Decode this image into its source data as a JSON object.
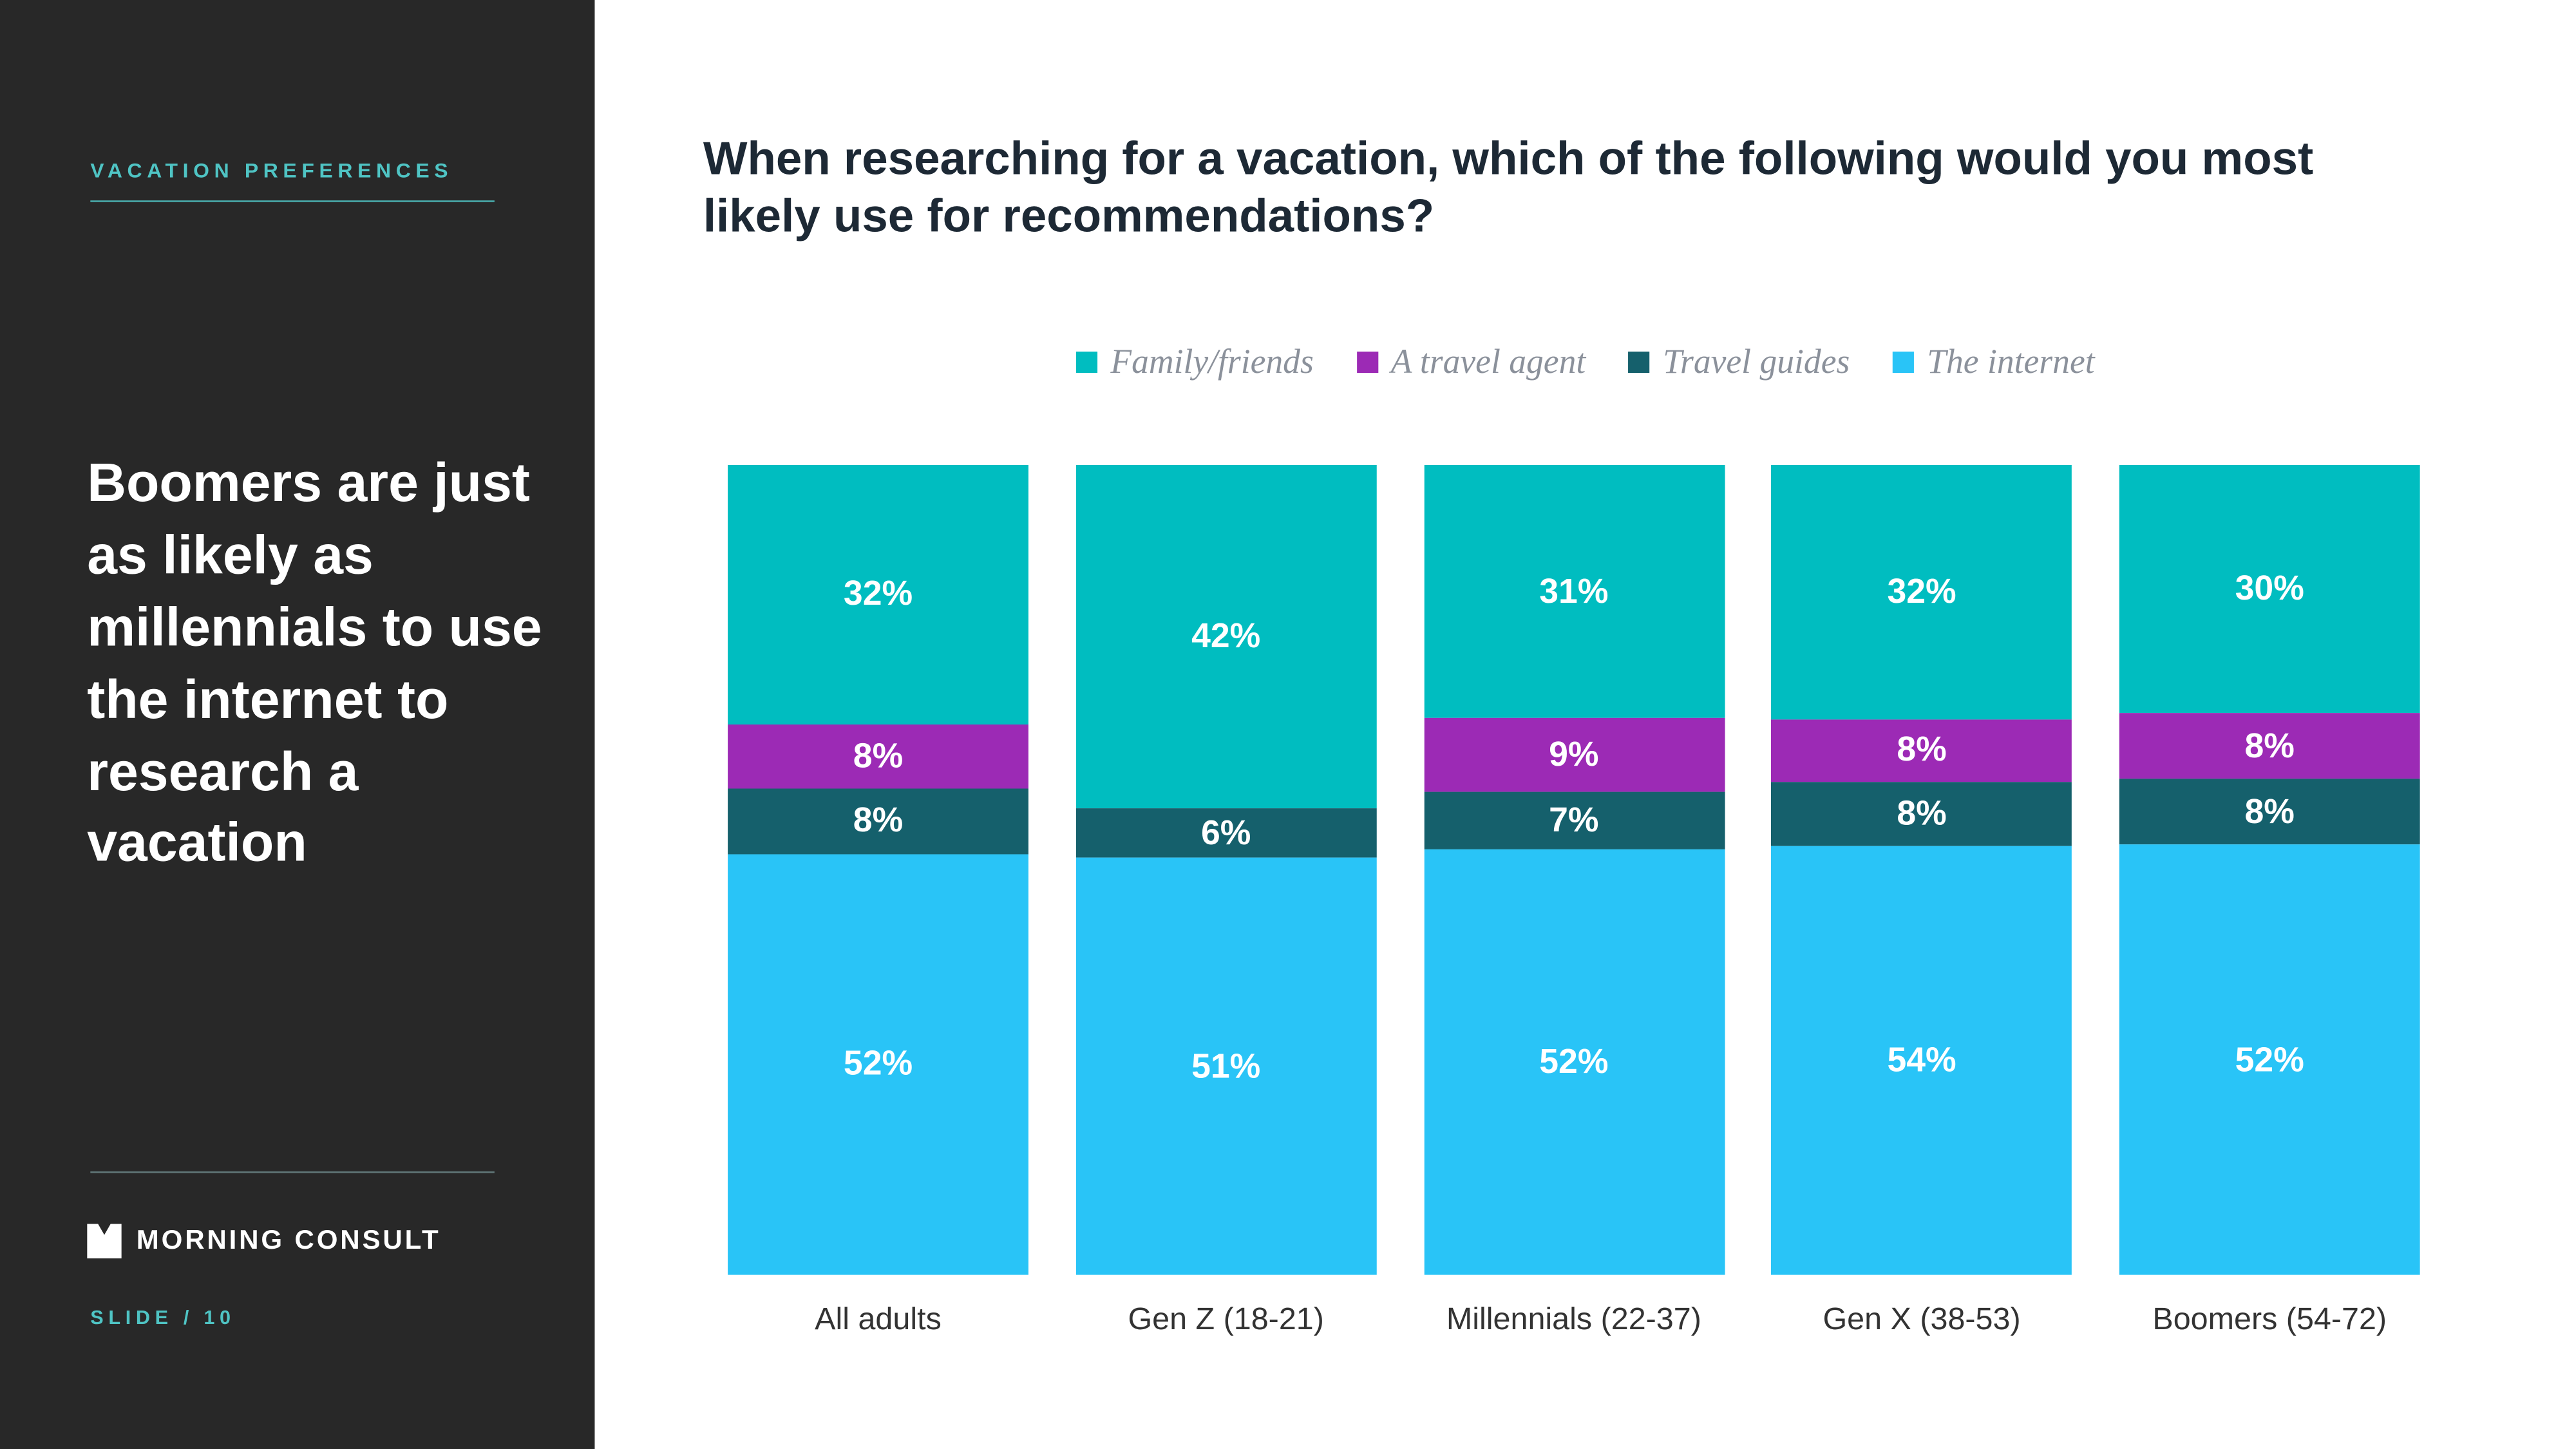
{
  "sidebar": {
    "eyebrow": "VACATION PREFERENCES",
    "headline": "Boomers are just as likely as millennials to use the internet to research a vacation",
    "brand": "MORNING CONSULT",
    "slide_label": "SLIDE /",
    "slide_number": "10",
    "accent_color": "#4fc4c4",
    "background_color": "#282828"
  },
  "main": {
    "title": "When researching for a vacation, which of the following would you most likely use for recommendations?"
  },
  "chart_data": {
    "type": "bar",
    "stacked": true,
    "legend_position": "top",
    "value_suffix": "%",
    "categories": [
      "All adults",
      "Gen Z (18-21)",
      "Millennials (22-37)",
      "Gen X (38-53)",
      "Boomers (54-72)"
    ],
    "series": [
      {
        "name": "Family/friends",
        "color": "#00bdc0",
        "values": [
          32,
          42,
          31,
          32,
          30
        ]
      },
      {
        "name": "A travel agent",
        "color": "#9c2ab5",
        "values": [
          8,
          null,
          9,
          8,
          8
        ]
      },
      {
        "name": "Travel guides",
        "color": "#15606c",
        "values": [
          8,
          6,
          7,
          8,
          8
        ]
      },
      {
        "name": "The internet",
        "color": "#29c4f7",
        "values": [
          52,
          51,
          52,
          54,
          52
        ]
      }
    ]
  }
}
